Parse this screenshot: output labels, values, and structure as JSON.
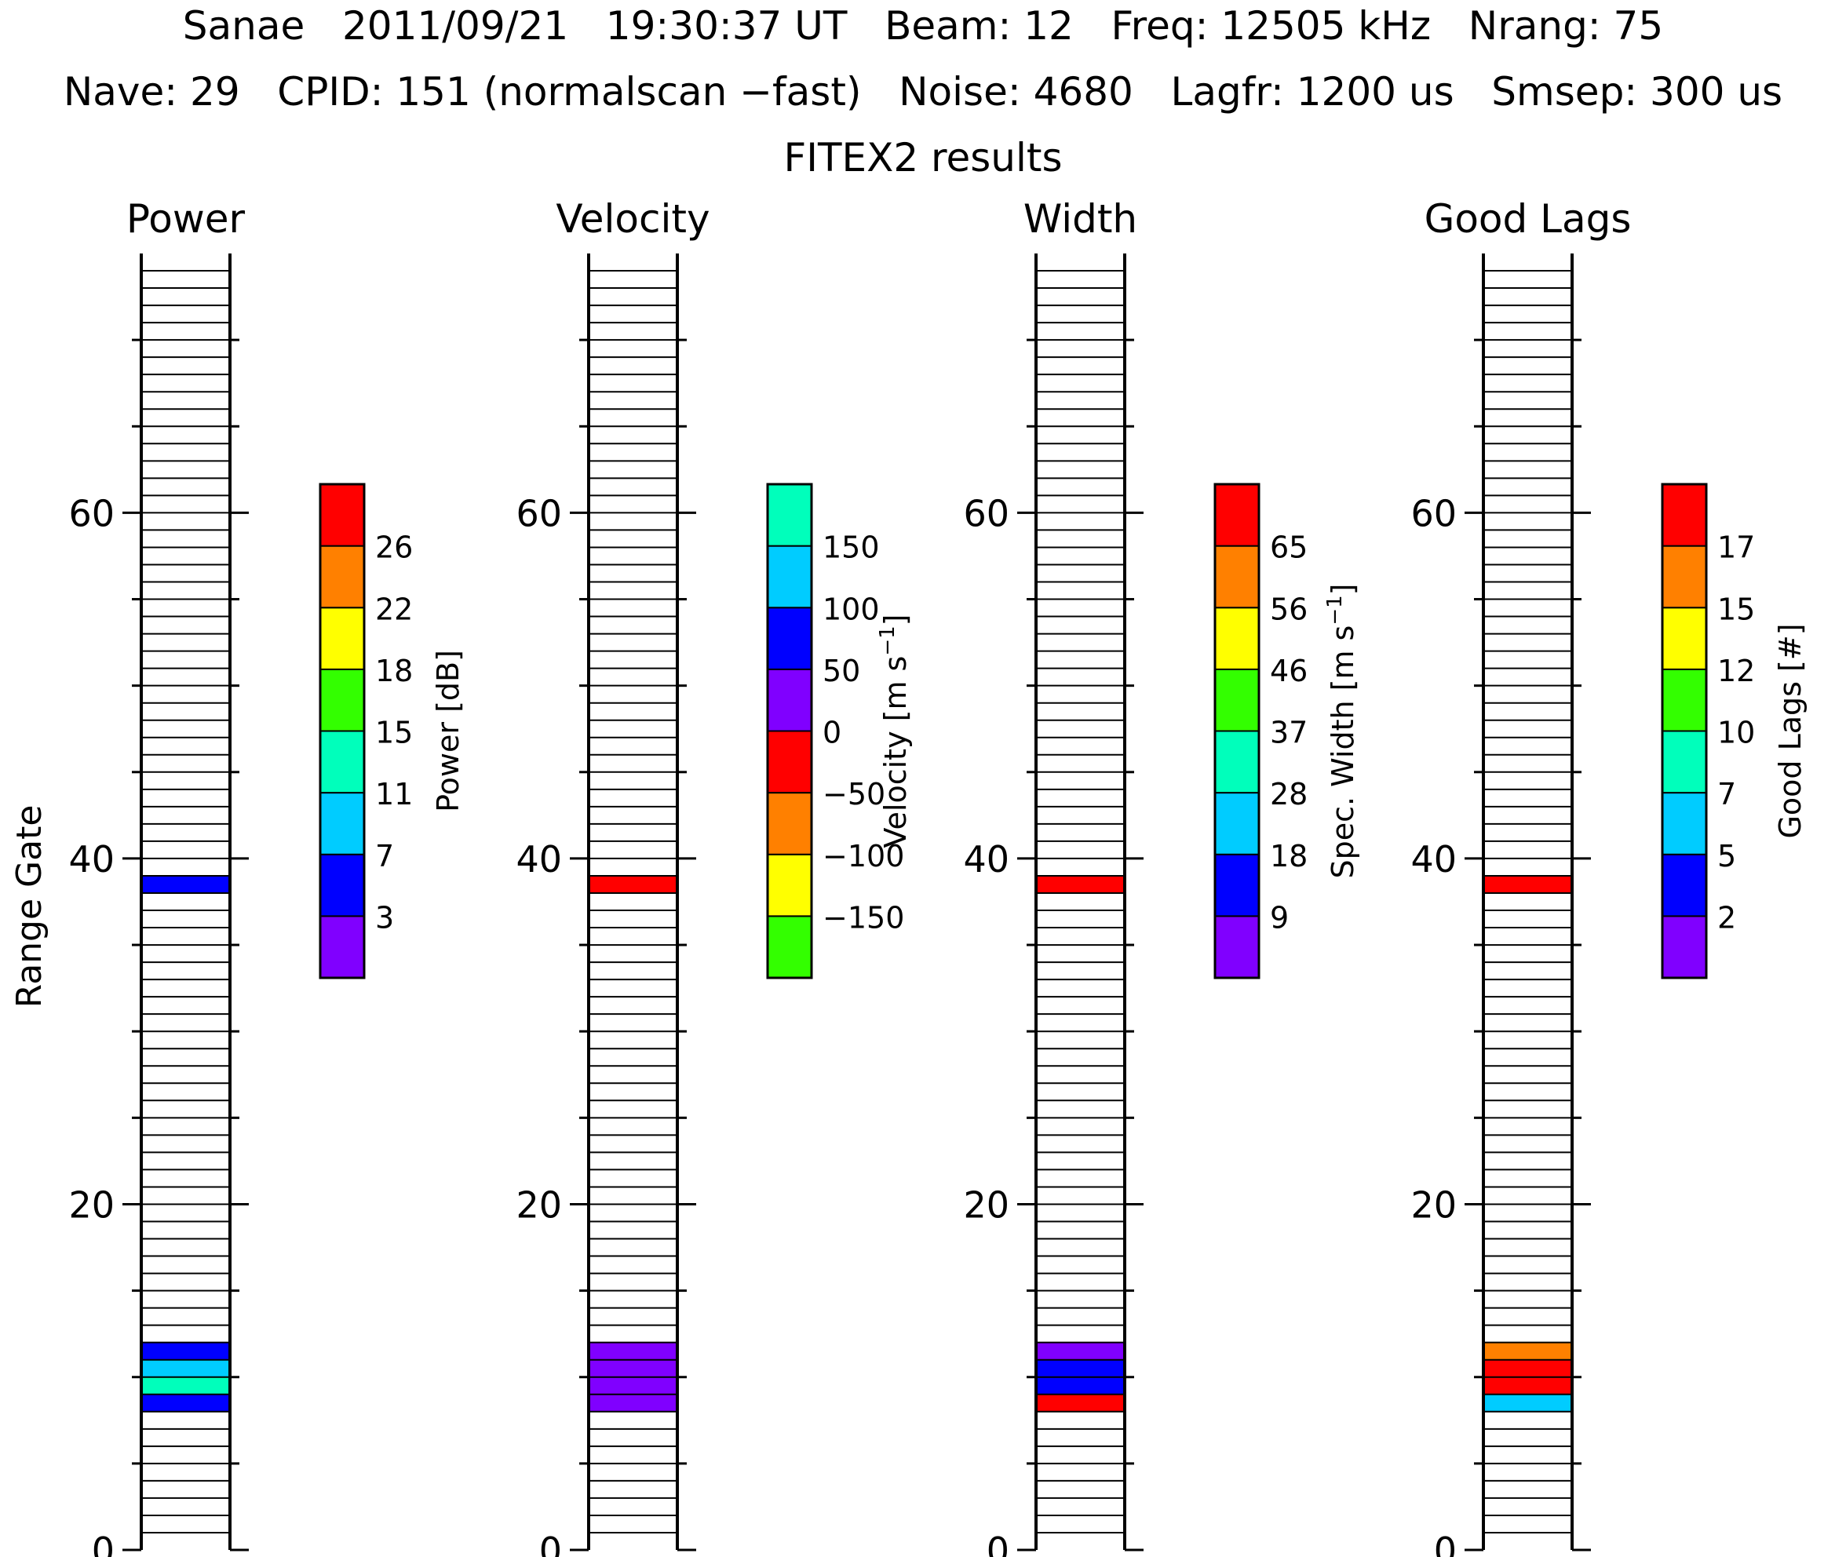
{
  "header": {
    "line1": "Sanae   2011/09/21   19:30:37 UT   Beam: 12   Freq: 12505 kHz   Nrang: 75",
    "line2": "Nave: 29   CPID: 151 (normalscan −fast)   Noise: 4680   Lagfr: 1200 us   Smsep: 300 us",
    "line3": "FITEX2 results"
  },
  "y_axis_label": "Range Gate",
  "y_ticks": [
    "0",
    "20",
    "40",
    "60"
  ],
  "chart_data": [
    {
      "type": "heatmap",
      "title": "Power",
      "ylabel": "Range Gate",
      "ylim": [
        0,
        75
      ],
      "colorbar": {
        "label_text": "Power",
        "label_unit": "[dB]",
        "colors": [
          "#8000ff",
          "#0000ff",
          "#00ccff",
          "#00ffbb",
          "#33ff00",
          "#ffff00",
          "#ff8000",
          "#ff0000"
        ],
        "tick_labels": [
          "3",
          "7",
          "11",
          "15",
          "18",
          "22",
          "26"
        ]
      },
      "gates": [
        {
          "gate": 8,
          "color": "#0000ff"
        },
        {
          "gate": 9,
          "color": "#00ffbb"
        },
        {
          "gate": 10,
          "color": "#00ccff"
        },
        {
          "gate": 11,
          "color": "#0000ff"
        },
        {
          "gate": 38,
          "color": "#0000ff"
        }
      ]
    },
    {
      "type": "heatmap",
      "title": "Velocity",
      "ylabel": "Range Gate",
      "ylim": [
        0,
        75
      ],
      "colorbar": {
        "label_text": "Velocity",
        "label_unit": "[m s",
        "label_sup": "−1",
        "label_end": "]",
        "colors": [
          "#33ff00",
          "#ffff00",
          "#ff8000",
          "#ff0000",
          "#8000ff",
          "#0000ff",
          "#00ccff",
          "#00ffbb"
        ],
        "tick_labels": [
          "−150",
          "−100",
          "−50",
          "0",
          "50",
          "100",
          "150"
        ]
      },
      "gates": [
        {
          "gate": 8,
          "color": "#8000ff"
        },
        {
          "gate": 9,
          "color": "#8000ff"
        },
        {
          "gate": 10,
          "color": "#8000ff"
        },
        {
          "gate": 11,
          "color": "#8000ff"
        },
        {
          "gate": 38,
          "color": "#ff0000"
        }
      ]
    },
    {
      "type": "heatmap",
      "title": "Width",
      "ylabel": "Range Gate",
      "ylim": [
        0,
        75
      ],
      "colorbar": {
        "label_text": "Spec. Width",
        "label_unit": "[m s",
        "label_sup": "−1",
        "label_end": "]",
        "colors": [
          "#8000ff",
          "#0000ff",
          "#00ccff",
          "#00ffbb",
          "#33ff00",
          "#ffff00",
          "#ff8000",
          "#ff0000"
        ],
        "tick_labels": [
          "9",
          "18",
          "28",
          "37",
          "46",
          "56",
          "65"
        ]
      },
      "gates": [
        {
          "gate": 8,
          "color": "#ff0000"
        },
        {
          "gate": 9,
          "color": "#0000ff"
        },
        {
          "gate": 10,
          "color": "#0000ff"
        },
        {
          "gate": 11,
          "color": "#8000ff"
        },
        {
          "gate": 38,
          "color": "#ff0000"
        }
      ]
    },
    {
      "type": "heatmap",
      "title": "Good Lags",
      "ylabel": "Range Gate",
      "ylim": [
        0,
        75
      ],
      "colorbar": {
        "label_text": "Good Lags",
        "label_unit": "[#]",
        "colors": [
          "#8000ff",
          "#0000ff",
          "#00ccff",
          "#00ffbb",
          "#33ff00",
          "#ffff00",
          "#ff8000",
          "#ff0000"
        ],
        "tick_labels": [
          "2",
          "5",
          "7",
          "10",
          "12",
          "15",
          "17"
        ]
      },
      "gates": [
        {
          "gate": 8,
          "color": "#00ccff"
        },
        {
          "gate": 9,
          "color": "#ff0000"
        },
        {
          "gate": 10,
          "color": "#ff0000"
        },
        {
          "gate": 11,
          "color": "#ff8000"
        },
        {
          "gate": 38,
          "color": "#ff0000"
        }
      ]
    }
  ]
}
